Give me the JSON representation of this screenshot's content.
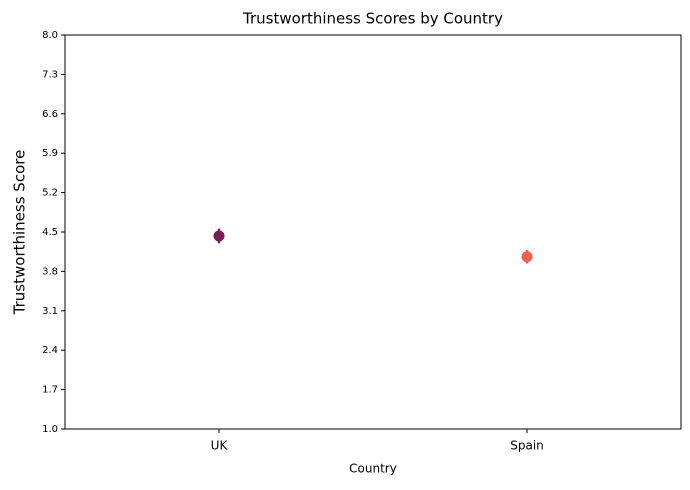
{
  "chart_data": {
    "type": "pointplot",
    "title": "Trustworthiness Scores by Country",
    "x_label": "Country",
    "y_label": "Trustworthiness Score",
    "categories": [
      "UK",
      "Spain"
    ],
    "values": [
      4.43,
      4.06
    ],
    "errors": [
      0.13,
      0.12
    ],
    "colors": [
      "#7b1c56",
      "#f0604a"
    ],
    "ylim": [
      1.0,
      8.0
    ],
    "yticks": [
      {
        "value": 1.0,
        "label": "1.0"
      },
      1.7,
      2.4,
      3.1,
      3.8,
      4.5,
      5.2,
      5.9,
      6.6,
      7.3,
      {
        "value": 8.0,
        "label": "8.0"
      }
    ]
  }
}
